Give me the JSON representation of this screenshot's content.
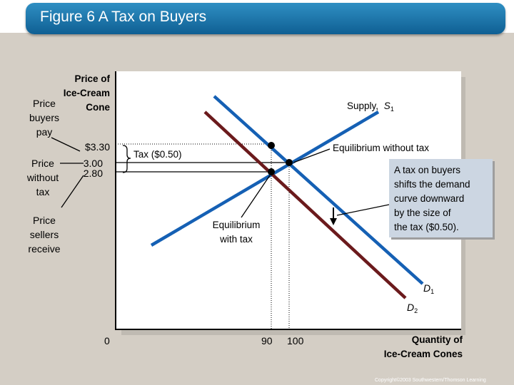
{
  "slide": {
    "title": "Figure 6 A Tax on Buyers",
    "copyright": "Copyright©2003 Southwestern/Thomson Learning"
  },
  "axes": {
    "y_title_1": "Price of",
    "y_title_2": "Ice-Cream",
    "y_title_3": "Cone",
    "x_title_1": "Quantity of",
    "x_title_2": "Ice-Cream Cones",
    "origin": "0"
  },
  "ticks": {
    "price_high": "$3.30",
    "price_mid": "3.00",
    "price_low": "2.80",
    "qty_tax": "90",
    "qty_no_tax": "100"
  },
  "left_labels": {
    "buyers_pay": "Price\nbuyers\npay",
    "without_tax": "Price\nwithout\ntax",
    "sellers_receive": "Price\nsellers\nreceive"
  },
  "annotations": {
    "tax_brace": "Tax ($0.50)",
    "eq_without_tax": "Equilibrium without tax",
    "eq_with_tax": "Equilibrium\nwith tax",
    "callout": "A tax on buyers\nshifts the demand\ncurve downward\nby the size of\nthe tax ($0.50)."
  },
  "curves": {
    "supply_label": "Supply,",
    "supply_symbol": "S",
    "supply_sub": "1",
    "d1_symbol": "D",
    "d1_sub": "1",
    "d2_symbol": "D",
    "d2_sub": "2"
  },
  "colors": {
    "supply": "#1560b4",
    "demand_1": "#1560b4",
    "demand_2": "#6b1a1c",
    "title_bar": "#1a72a8",
    "callout_bg": "#ccd6e2"
  }
}
